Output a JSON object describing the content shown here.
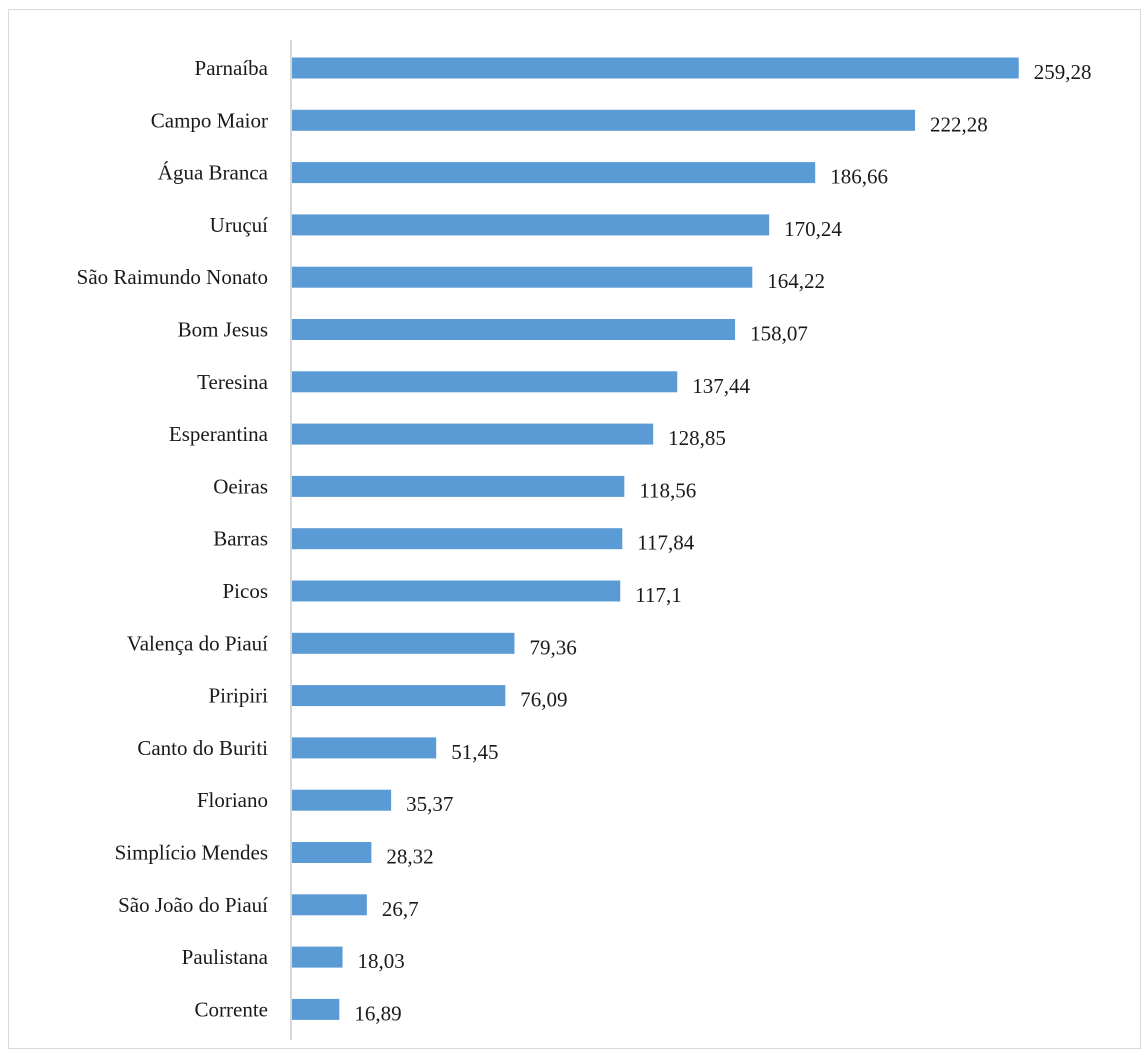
{
  "chart_data": {
    "type": "bar",
    "orientation": "horizontal",
    "categories": [
      "Parnaíba",
      "Campo Maior",
      "Água Branca",
      "Uruçuí",
      "São Raimundo Nonato",
      "Bom Jesus",
      "Teresina",
      "Esperantina",
      "Oeiras",
      "Barras",
      "Picos",
      "Valença do Piauí",
      "Piripiri",
      "Canto do Buriti",
      "Floriano",
      "Simplício Mendes",
      "São João do Piauí",
      "Paulistana",
      "Corrente"
    ],
    "values": [
      259.28,
      222.28,
      186.66,
      170.24,
      164.22,
      158.07,
      137.44,
      128.85,
      118.56,
      117.84,
      117.1,
      79.36,
      76.09,
      51.45,
      35.37,
      28.32,
      26.7,
      18.03,
      16.89
    ],
    "value_labels": [
      "259,28",
      "222,28",
      "186,66",
      "170,24",
      "164,22",
      "158,07",
      "137,44",
      "128,85",
      "118,56",
      "117,84",
      "117,1",
      "79,36",
      "76,09",
      "51,45",
      "35,37",
      "28,32",
      "26,7",
      "18,03",
      "16,89"
    ],
    "bar_color": "#5b9bd5",
    "axis_color": "#bfbfbf",
    "title": "",
    "xlabel": "",
    "ylabel": "",
    "grid": false,
    "legend": "none"
  }
}
